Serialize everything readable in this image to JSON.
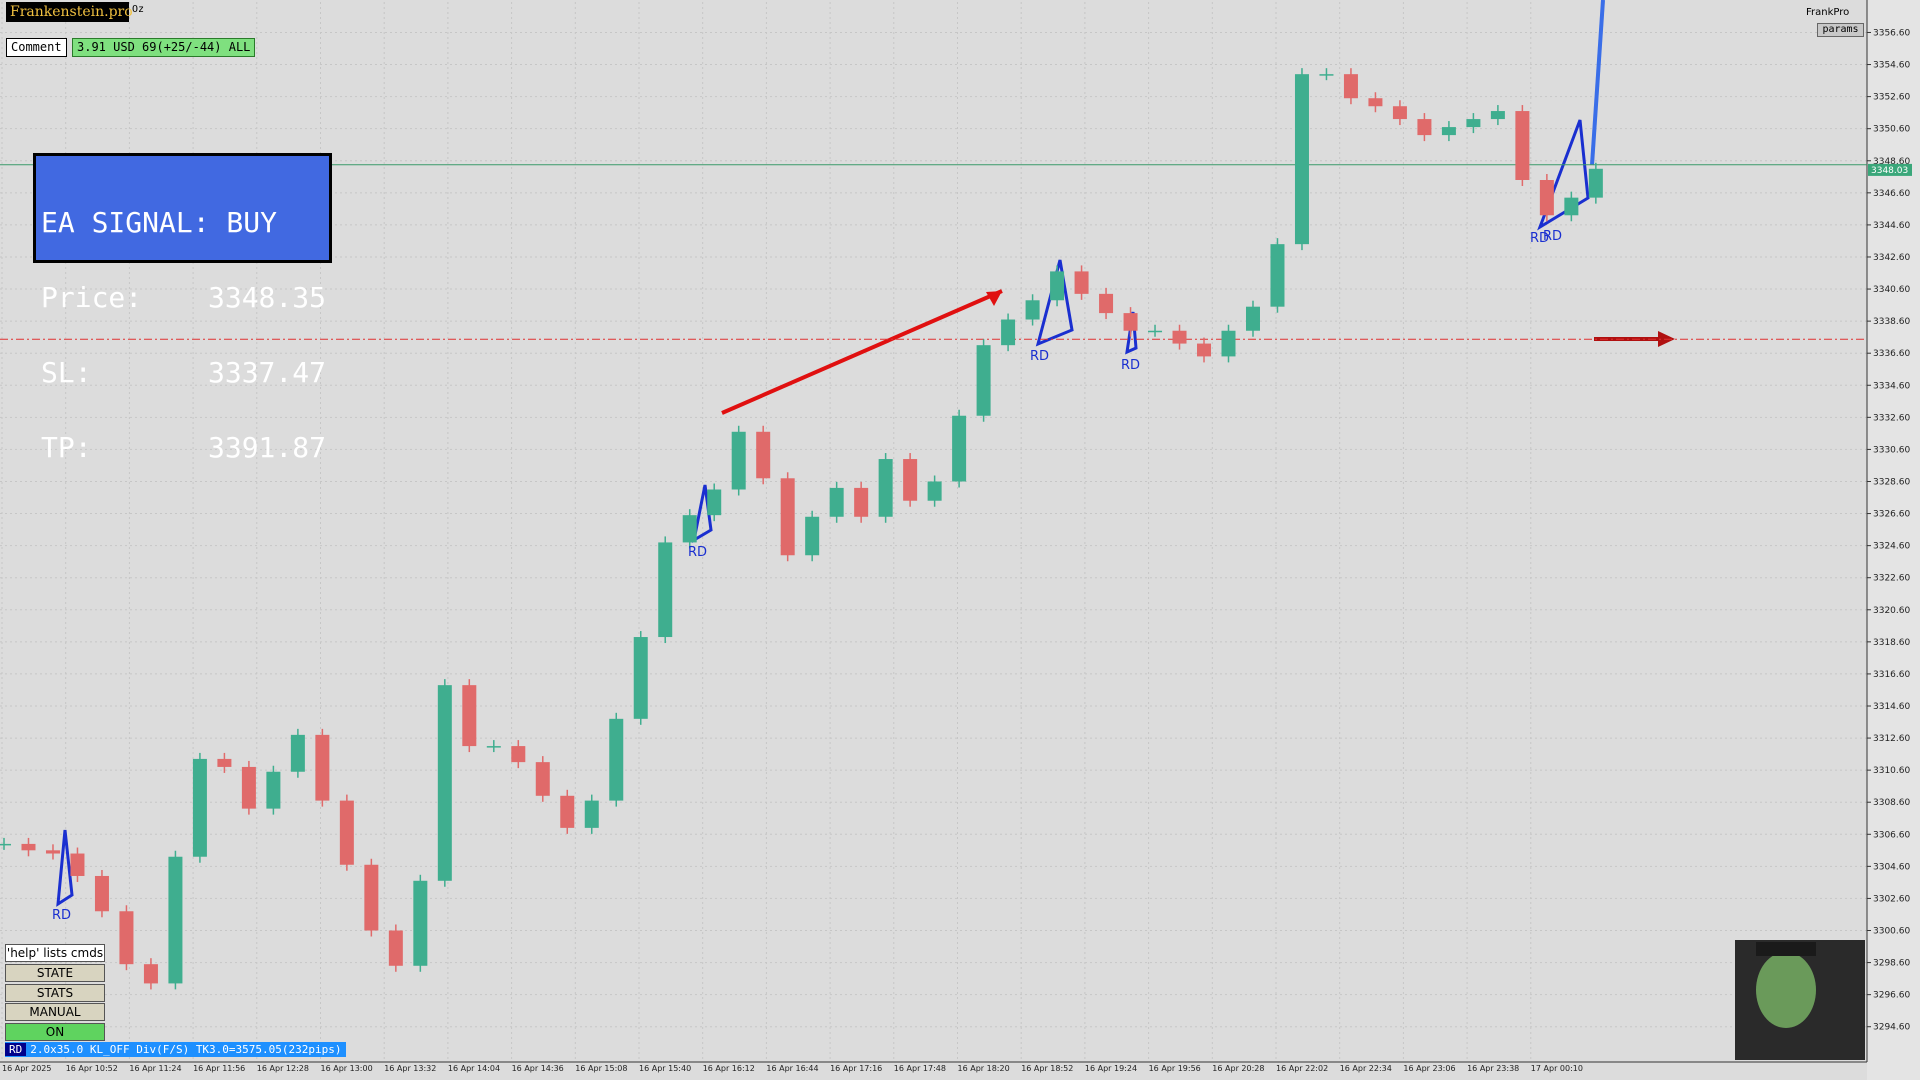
{
  "header": {
    "brand": "Frankenstein.pro",
    "symbol": "Oz",
    "account": "FrankPro",
    "params_button": "params"
  },
  "comment": {
    "label": "Comment",
    "summary": "3.91 USD 69(+25/-44) ALL"
  },
  "signal": {
    "title": "EA SIGNAL: BUY",
    "price_label": "Price:",
    "price": 3348.35,
    "sl_label": "SL:",
    "sl": 3337.47,
    "tp_label": "TP:",
    "tp": 3391.87
  },
  "controls": {
    "help": "'help' lists cmds",
    "buttons": [
      "STATE",
      "STATS",
      "MANUAL",
      "ON"
    ]
  },
  "status": {
    "tag": "RD",
    "text": "2.0x35.0 KL_OFF Div(F/S) TK3.0=3575.05(232pips)"
  },
  "chart_data": {
    "type": "candlestick",
    "up_color": "#3fae8f",
    "down_color": "#e06a6a",
    "close": [
      3306.0,
      3305.6,
      3305.4,
      3304.0,
      3301.8,
      3298.5,
      3297.3,
      3305.2,
      3311.3,
      3310.8,
      3308.2,
      3310.5,
      3312.8,
      3308.7,
      3304.7,
      3300.6,
      3298.4,
      3303.7,
      3315.9,
      3312.1,
      3312.1,
      3311.1,
      3309.0,
      3307.0,
      3308.7,
      3313.8,
      3318.9,
      3324.8,
      3326.5,
      3328.1,
      3331.7,
      3328.8,
      3324.0,
      3326.4,
      3328.2,
      3326.4,
      3330.0,
      3327.4,
      3328.6,
      3332.7,
      3337.1,
      3338.7,
      3339.9,
      3341.7,
      3340.3,
      3339.1,
      3338.0,
      3338.0,
      3337.2,
      3336.4,
      3338.0,
      3339.5,
      3343.4,
      3354.0,
      3354.0,
      3352.5,
      3352.0,
      3351.2,
      3350.2,
      3350.7,
      3351.2,
      3351.7,
      3347.4,
      3345.2,
      3346.3,
      3348.1
    ],
    "x_labels": [
      "16 Apr 2025",
      "16 Apr 10:52",
      "16 Apr 11:24",
      "16 Apr 11:56",
      "16 Apr 12:28",
      "16 Apr 13:00",
      "16 Apr 13:32",
      "16 Apr 14:04",
      "16 Apr 14:36",
      "16 Apr 15:08",
      "16 Apr 15:40",
      "16 Apr 16:12",
      "16 Apr 16:44",
      "16 Apr 17:16",
      "16 Apr 17:48",
      "16 Apr 18:20",
      "16 Apr 18:52",
      "16 Apr 19:24",
      "16 Apr 19:56",
      "16 Apr 20:28",
      "16 Apr 22:02",
      "16 Apr 22:34",
      "16 Apr 23:06",
      "16 Apr 23:38",
      "17 Apr 00:10"
    ],
    "ylim": [
      3292.4,
      3358.5
    ],
    "yticks": [
      {
        "value": 3294.6,
        "label": "3294.60"
      },
      {
        "value": 3296.6,
        "label": "3296.60"
      },
      {
        "value": 3298.6,
        "label": "3298.60"
      },
      {
        "value": 3300.6,
        "label": "3300.60"
      },
      {
        "value": 3302.6,
        "label": "3302.60"
      },
      {
        "value": 3304.6,
        "label": "3304.60"
      },
      {
        "value": 3306.6,
        "label": "3306.60"
      },
      {
        "value": 3308.6,
        "label": "3308.60"
      },
      {
        "value": 3310.6,
        "label": "3310.60"
      },
      {
        "value": 3312.6,
        "label": "3312.60"
      },
      {
        "value": 3314.6,
        "label": "3314.60"
      },
      {
        "value": 3316.6,
        "label": "3316.60"
      },
      {
        "value": 3318.6,
        "label": "3318.60"
      },
      {
        "value": 3320.6,
        "label": "3320.60"
      },
      {
        "value": 3322.6,
        "label": "3322.60"
      },
      {
        "value": 3324.6,
        "label": "3324.60"
      },
      {
        "value": 3326.6,
        "label": "3326.60"
      },
      {
        "value": 3328.6,
        "label": "3328.60"
      },
      {
        "value": 3330.6,
        "label": "3330.60"
      },
      {
        "value": 3332.6,
        "label": "3332.60"
      },
      {
        "value": 3334.6,
        "label": "3334.60"
      },
      {
        "value": 3336.6,
        "label": "3336.60"
      },
      {
        "value": 3338.6,
        "label": "3338.60"
      },
      {
        "value": 3340.6,
        "label": "3340.60"
      },
      {
        "value": 3342.6,
        "label": "3342.60"
      },
      {
        "value": 3344.6,
        "label": "3344.60"
      },
      {
        "value": 3346.6,
        "label": "3346.60"
      },
      {
        "value": 3348.6,
        "label": "3348.60"
      },
      {
        "value": 3350.6,
        "label": "3350.60"
      },
      {
        "value": 3352.6,
        "label": "3352.60"
      },
      {
        "value": 3354.6,
        "label": "3354.60"
      },
      {
        "value": 3356.6,
        "label": "3356.60"
      }
    ],
    "current_price": 3348.03,
    "grid": true,
    "annotations": [
      "RD",
      "RD",
      "RD",
      "RD",
      "RD",
      "RD"
    ]
  }
}
